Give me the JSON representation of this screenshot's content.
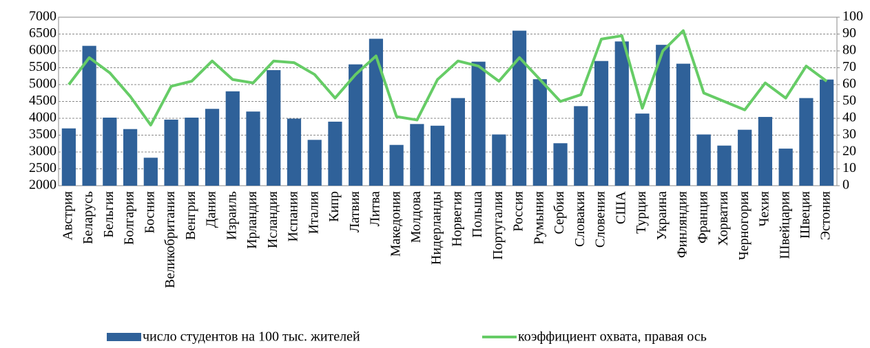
{
  "chart_data": {
    "type": "bar-line",
    "categories": [
      "Австрия",
      "Беларусь",
      "Бельгия",
      "Болгария",
      "Босния",
      "Великобритания",
      "Венгрия",
      "Дания",
      "Израиль",
      "Ирландия",
      "Исландия",
      "Испания",
      "Италия",
      "Кипр",
      "Латвия",
      "Литва",
      "Македония",
      "Молдова",
      "Нидерланды",
      "Норвегия",
      "Польша",
      "Португалия",
      "Россия",
      "Румыния",
      "Сербия",
      "Словакия",
      "Словения",
      "США",
      "Турция",
      "Украина",
      "Финляндия",
      "Франция",
      "Хорватия",
      "Черногория",
      "Чехия",
      "Швейцария",
      "Швеция",
      "Эстония"
    ],
    "series": [
      {
        "name": "число студентов на 100 тыс. жителей",
        "type": "bar",
        "color": "#2f6199",
        "values": [
          3700,
          6150,
          4020,
          3680,
          2830,
          3960,
          4020,
          4280,
          4800,
          4200,
          5430,
          3990,
          3360,
          3900,
          5600,
          6360,
          3210,
          3830,
          3780,
          4600,
          5680,
          3520,
          6600,
          5160,
          3260,
          4360,
          5700,
          6280,
          4140,
          6180,
          5620,
          3520,
          3190,
          3660,
          4040,
          3100,
          4600,
          5150
        ]
      },
      {
        "name": "коэффициент охвата, правая ось",
        "type": "line",
        "axis": "y2",
        "color": "#66cc66",
        "values": [
          60,
          76,
          67,
          53,
          36,
          59,
          62,
          74,
          63,
          61,
          74,
          73,
          66,
          52,
          66,
          77,
          41,
          39,
          63,
          74,
          71,
          62,
          76,
          63,
          50,
          54,
          87,
          89,
          46,
          80,
          92,
          55,
          50,
          45,
          61,
          52,
          71,
          62
        ]
      }
    ],
    "ylim": [
      2000,
      7000
    ],
    "yticks": [
      2000,
      2500,
      3000,
      3500,
      4000,
      4500,
      5000,
      5500,
      6000,
      6500,
      7000
    ],
    "y2lim": [
      0,
      100
    ],
    "y2ticks": [
      0,
      10,
      20,
      30,
      40,
      50,
      60,
      70,
      80,
      90,
      100
    ],
    "grid": true
  }
}
